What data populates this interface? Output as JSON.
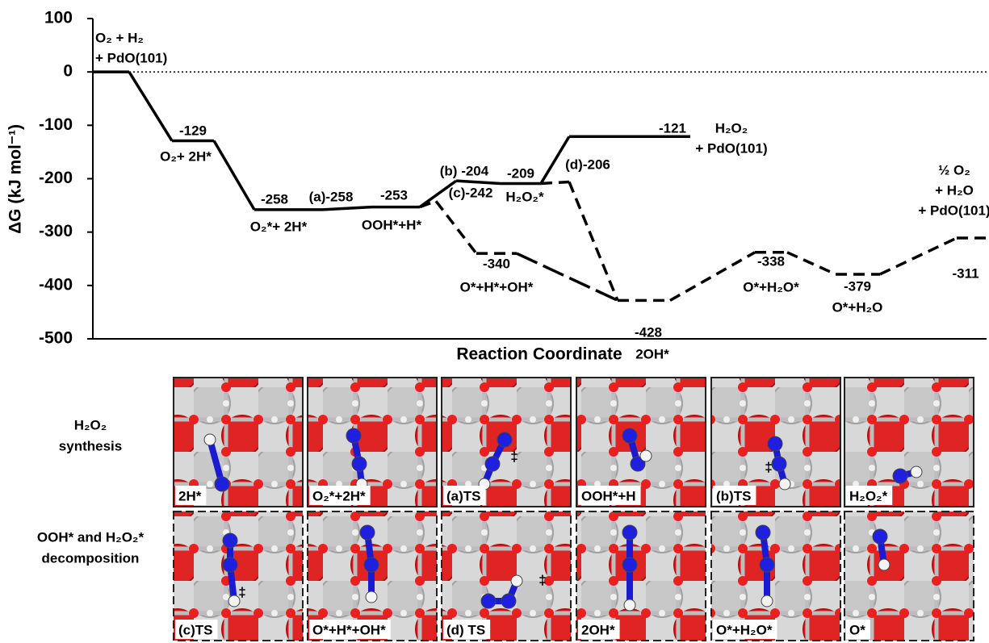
{
  "chart_data": {
    "type": "energy-profile",
    "ylabel": "ΔG (kJ mol⁻¹)",
    "xlabel": "Reaction Coordinate",
    "ylim": [
      -500,
      100
    ],
    "yticks": [
      -500,
      -400,
      -300,
      -200,
      -100,
      0,
      100
    ],
    "zero_line": "dotted",
    "color": "#000000",
    "states": [
      {
        "species": [
          "O₂ + H₂",
          "+ PdO(101)"
        ],
        "value": 0
      },
      {
        "species": [
          "O₂+ 2H*"
        ],
        "value": -129
      },
      {
        "species": [
          "O₂*+ 2H*"
        ],
        "value": -258
      },
      {
        "value": -258,
        "value_label": "(a)-258"
      },
      {
        "species": [
          "OOH*+H*"
        ],
        "value": -253
      },
      {
        "value": -204,
        "value_label": "(b) -204"
      },
      {
        "species": [
          "H₂O₂*"
        ],
        "value": -209
      },
      {
        "species": [
          "H₂O₂",
          "+ PdO(101)"
        ],
        "value": -121
      },
      {
        "value": -242,
        "value_label": "(c)-242"
      },
      {
        "species": [
          "O*+H*+OH*"
        ],
        "value": -340
      },
      {
        "value": -206,
        "value_label": "(d)-206"
      },
      {
        "species": [
          "2OH*"
        ],
        "value": -428
      },
      {
        "species": [
          "O*+H₂O*"
        ],
        "value": -338
      },
      {
        "species": [
          "O*+H₂O"
        ],
        "value": -379
      },
      {
        "species": [
          "½ O₂",
          "+ H₂O",
          "+ PdO(101)"
        ],
        "value": -311
      }
    ]
  },
  "panels": {
    "symbol": "‡",
    "rows": [
      {
        "title": [
          "H₂O₂",
          "synthesis"
        ],
        "captions": [
          "2H*",
          "O₂*+2H*",
          "(a)TS",
          "OOH*+H",
          "(b)TS",
          "H₂O₂*"
        ]
      },
      {
        "title": [
          "OOH* and H₂O₂*",
          "decomposition"
        ],
        "captions": [
          "(c)TS",
          "O*+H*+OH*",
          "(d) TS",
          "2OH*",
          "O*+H₂O*",
          "O*"
        ]
      }
    ]
  }
}
